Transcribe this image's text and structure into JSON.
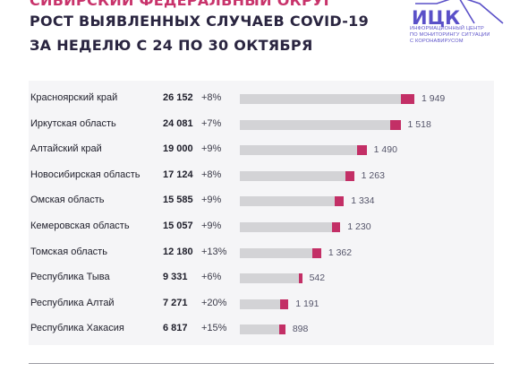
{
  "header": {
    "line1": "СИБИРСКИЙ ФЕДЕРАЛЬНЫЙ ОКРУГ",
    "line2": "РОСТ ВЫЯВЛЕННЫХ СЛУЧАЕВ COVID-19",
    "line3": "ЗА НЕДЕЛЮ С 24 ПО 30 ОКТЯБРЯ"
  },
  "logo": {
    "title": "ИЦК",
    "line1": "ИНФОРМАЦИОННЫЙ ЦЕНТР",
    "line2": "ПО МОНИТОРИНГУ СИТУАЦИИ",
    "line3": "С КОРОНАВИРУСОМ",
    "color": "#5a50c8"
  },
  "colors": {
    "accent": "#c32f66",
    "bar": "#d3d3d6",
    "panel": "#f5f5f7"
  },
  "chart_data": {
    "type": "bar",
    "orientation": "horizontal",
    "stacked": true,
    "categories": [
      "Красноярский край",
      "Иркутская область",
      "Алтайский край",
      "Новосибирская область",
      "Омская область",
      "Кемеровская область",
      "Томская область",
      "Республика Тыва",
      "Республика Алтай",
      "Республика Хакасия"
    ],
    "totals": [
      26152,
      24081,
      19000,
      17124,
      15585,
      15057,
      12180,
      9331,
      7271,
      6817
    ],
    "totals_labels": [
      "26 152",
      "24 081",
      "19 000",
      "17 124",
      "15 585",
      "15 057",
      "12 180",
      "9 331",
      "7 271",
      "6 817"
    ],
    "growth_labels": [
      "+8%",
      "+7%",
      "+9%",
      "+8%",
      "+9%",
      "+9%",
      "+13%",
      "+6%",
      "+20%",
      "+15%"
    ],
    "new_cases": [
      1949,
      1518,
      1490,
      1263,
      1334,
      1230,
      1362,
      542,
      1191,
      898
    ],
    "new_cases_labels": [
      "1 949",
      "1 518",
      "1 490",
      "1 263",
      "1 334",
      "1 230",
      "1 362",
      "542",
      "1 191",
      "898"
    ],
    "xlim": [
      0,
      26152
    ],
    "title": "",
    "xlabel": "",
    "ylabel": "",
    "grid": false,
    "legend": ""
  }
}
